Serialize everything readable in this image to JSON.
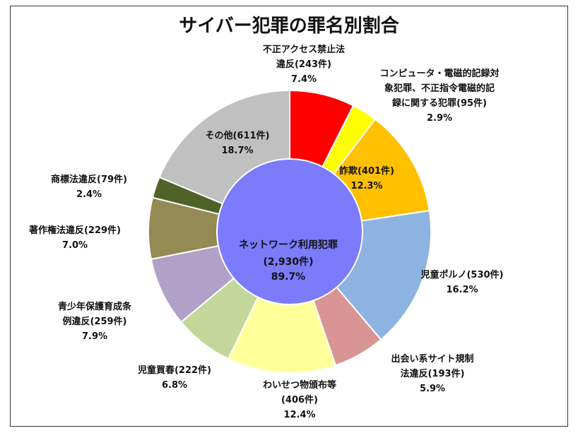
{
  "chart_data": {
    "type": "pie",
    "title": "サイバー犯罪の罪名別割合",
    "center": {
      "lines": [
        "ネットワーク利用犯罪",
        "(2,930件)",
        "89.7%"
      ],
      "color": "#7B7BFB"
    },
    "slices": [
      {
        "name": "不正アクセス禁止法違反",
        "count": 243,
        "percent": 7.4,
        "color": "#FF0000",
        "label_lines": [
          "不正アクセス禁止法",
          "違反(243件)",
          "7.4%"
        ]
      },
      {
        "name": "コンピュータ・電磁的記録対象犯罪、不正指令電磁的記録に関する犯罪",
        "count": 95,
        "percent": 2.9,
        "color": "#FFFF00",
        "label_lines": [
          "コンピュータ・電磁的記録対",
          "象犯罪、不正指令電磁的記",
          "録に関する犯罪(95件)",
          "2.9%"
        ]
      },
      {
        "name": "詐欺",
        "count": 401,
        "percent": 12.3,
        "color": "#FFC000",
        "label_lines": [
          "詐欺(401件)",
          "12.3%"
        ]
      },
      {
        "name": "児童ポルノ",
        "count": 530,
        "percent": 16.2,
        "color": "#8DB3E2",
        "label_lines": [
          "児童ポルノ(530件)",
          "16.2%"
        ]
      },
      {
        "name": "出会い系サイト規制法違反",
        "count": 193,
        "percent": 5.9,
        "color": "#D99594",
        "label_lines": [
          "出会い系サイト規制",
          "法違反(193件)",
          "5.9%"
        ]
      },
      {
        "name": "わいせつ物頒布等",
        "count": 406,
        "percent": 12.4,
        "color": "#FFFF99",
        "label_lines": [
          "わいせつ物頒布等",
          "(406件)",
          "12.4%"
        ]
      },
      {
        "name": "児童買春",
        "count": 222,
        "percent": 6.8,
        "color": "#C4D79B",
        "label_lines": [
          "児童買春(222件)",
          "6.8%"
        ]
      },
      {
        "name": "青少年保護育成条例違反",
        "count": 259,
        "percent": 7.9,
        "color": "#B1A0C7",
        "label_lines": [
          "青少年保護育成条",
          "例違反(259件)",
          "7.9%"
        ]
      },
      {
        "name": "著作権法違反",
        "count": 229,
        "percent": 7.0,
        "color": "#948A54",
        "label_lines": [
          "著作権法違反(229件)",
          "7.0%"
        ]
      },
      {
        "name": "商標法違反",
        "count": 79,
        "percent": 2.4,
        "color": "#4F6228",
        "label_lines": [
          "商標法違反(79件)",
          "2.4%"
        ]
      },
      {
        "name": "その他",
        "count": 611,
        "percent": 18.7,
        "color": "#C0C0C0",
        "label_lines": [
          "その他(611件)",
          "18.7%"
        ]
      }
    ],
    "legend": "none",
    "grid": false
  }
}
